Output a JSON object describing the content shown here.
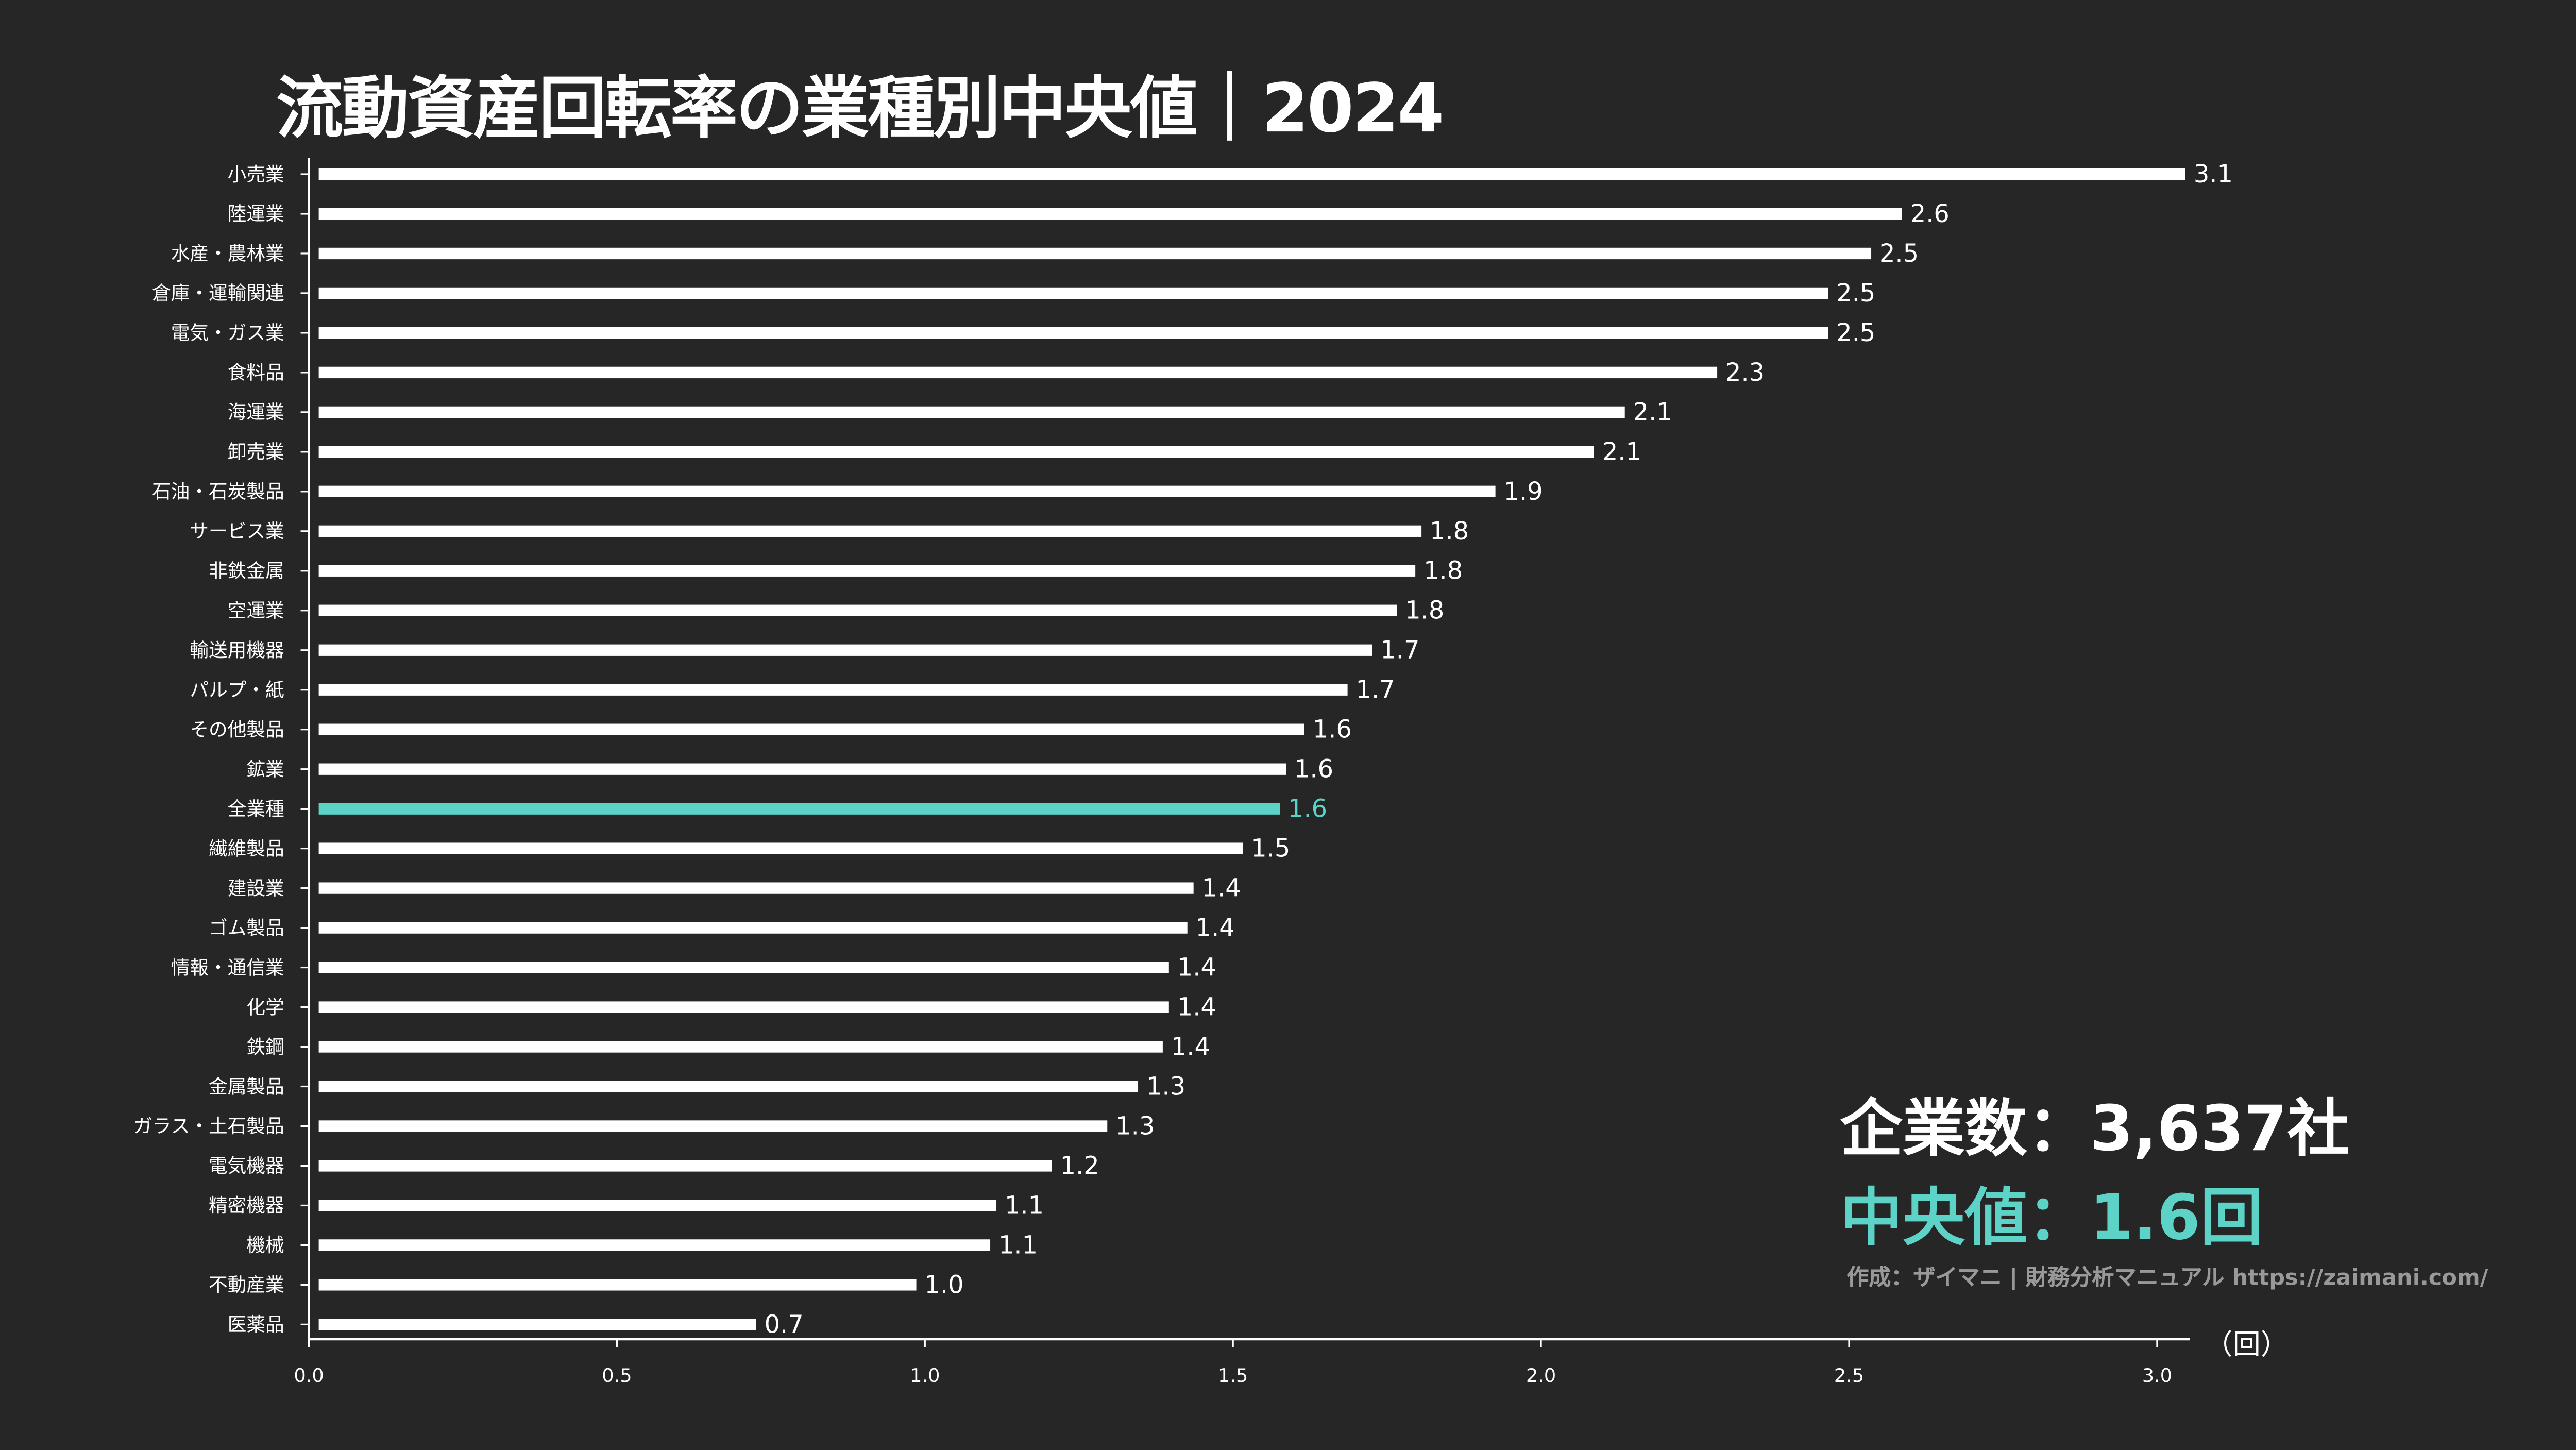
{
  "title": "流動資産回転率の業種別中央値｜2024",
  "summary": {
    "company_count": "企業数：3,637社",
    "median": "中央値：1.6回"
  },
  "credit": "作成：ザイマニ | 財務分析マニュアル https://zaimani.com/",
  "colors": {
    "background": "#262626",
    "bar": "#ffffff",
    "highlight": "#5dd3c8"
  },
  "chart_data": {
    "type": "bar",
    "orientation": "horizontal",
    "title": "流動資産回転率の業種別中央値｜2024",
    "xlabel": "（回）",
    "xlim": [
      0,
      3.05
    ],
    "xticks": [
      "0.0",
      "0.5",
      "1.0",
      "1.5",
      "2.0",
      "2.5",
      "3.0"
    ],
    "highlight_category": "全業種",
    "categories": [
      "小売業",
      "陸運業",
      "水産・農林業",
      "倉庫・運輸関連",
      "電気・ガス業",
      "食料品",
      "海運業",
      "卸売業",
      "石油・石炭製品",
      "サービス業",
      "非鉄金属",
      "空運業",
      "輸送用機器",
      "パルプ・紙",
      "その他製品",
      "鉱業",
      "全業種",
      "繊維製品",
      "建設業",
      "ゴム製品",
      "情報・通信業",
      "化学",
      "鉄鋼",
      "金属製品",
      "ガラス・土石製品",
      "電気機器",
      "精密機器",
      "機械",
      "不動産業",
      "医薬品"
    ],
    "values": [
      3.1,
      2.6,
      2.5,
      2.5,
      2.5,
      2.3,
      2.1,
      2.1,
      1.9,
      1.8,
      1.8,
      1.8,
      1.7,
      1.7,
      1.6,
      1.6,
      1.6,
      1.5,
      1.4,
      1.4,
      1.4,
      1.4,
      1.4,
      1.3,
      1.3,
      1.2,
      1.1,
      1.1,
      1.0,
      0.7
    ],
    "bar_lengths": [
      3.03,
      2.57,
      2.52,
      2.45,
      2.45,
      2.27,
      2.12,
      2.07,
      1.91,
      1.79,
      1.78,
      1.75,
      1.71,
      1.67,
      1.6,
      1.57,
      1.56,
      1.5,
      1.42,
      1.41,
      1.38,
      1.38,
      1.37,
      1.33,
      1.28,
      1.19,
      1.1,
      1.09,
      0.97,
      0.71
    ]
  }
}
